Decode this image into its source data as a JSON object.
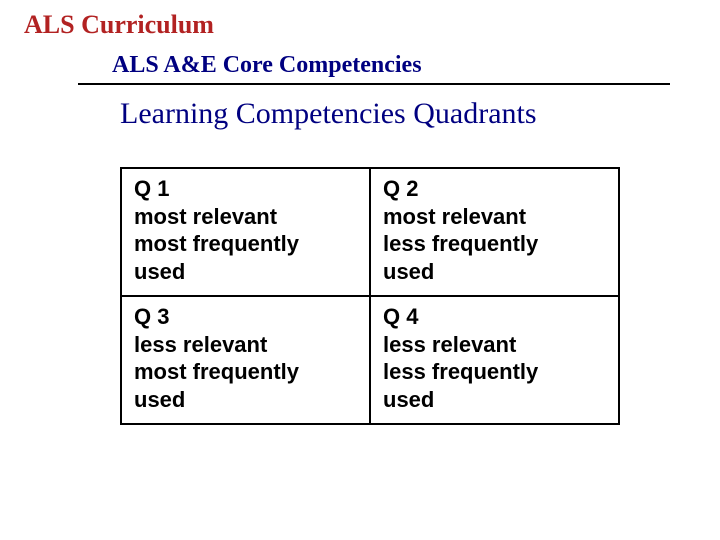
{
  "colors": {
    "title_main": "#b22222",
    "subtitle": "#000080",
    "hr": "#000000",
    "heading": "#000080",
    "cell_text": "#000000",
    "cell_border": "#000000",
    "background": "#ffffff"
  },
  "title_main": "ALS Curriculum",
  "subtitle": "ALS A&E Core Competencies",
  "heading": "Learning Competencies Quadrants",
  "table": {
    "rows": [
      [
        {
          "label": "Q 1",
          "line1": "most relevant",
          "line2": "most frequently",
          "line3": "used"
        },
        {
          "label": "Q 2",
          "line1": "most relevant",
          "line2": "less frequently",
          "line3": "used"
        }
      ],
      [
        {
          "label": "Q 3",
          "line1": "less relevant",
          "line2": "most frequently",
          "line3": "used"
        },
        {
          "label": "Q 4",
          "line1": "less relevant",
          "line2": "less frequently",
          "line3": "used"
        }
      ]
    ]
  }
}
